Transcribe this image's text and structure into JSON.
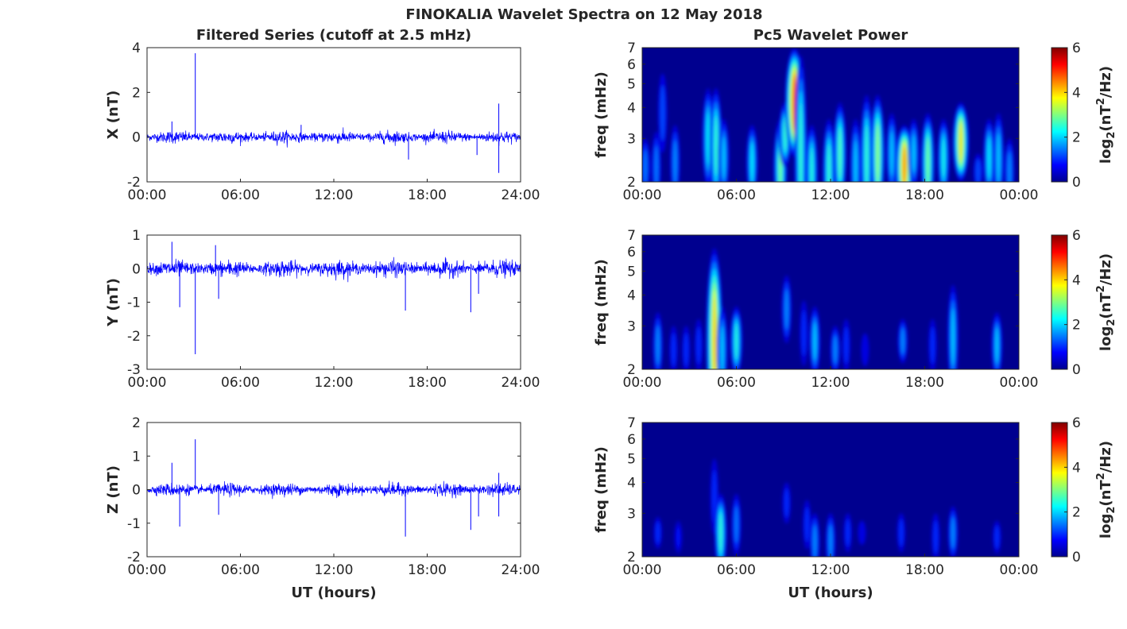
{
  "chart_data": {
    "title": "FINOKALIA Wavelet Spectra on 12 May 2018",
    "left_title": "Filtered Series (cutoff at 2.5 mHz)",
    "right_title": "Pc5 Wavelet Power",
    "xlabel": "UT (hours)",
    "time_ticks": [
      "00:00",
      "06:00",
      "12:00",
      "18:00",
      "24:00"
    ],
    "wavelet_time_ticks": [
      "00:00",
      "06:00",
      "12:00",
      "18:00",
      "00:00"
    ],
    "freq_label": "freq (mHz)",
    "freq_ticks": [
      2,
      3,
      4,
      5,
      6,
      7
    ],
    "freq_range": [
      2,
      7
    ],
    "colorbar": {
      "label": "log2(nT²/Hz)",
      "label_base": "log",
      "label_sub": "2",
      "label_rest_a": "(nT",
      "label_sup": "2",
      "label_rest_b": "/Hz)",
      "ticks": [
        0,
        2,
        4,
        6
      ],
      "range": [
        0,
        6
      ],
      "colormap": "jet"
    },
    "series": [
      {
        "name": "X",
        "ylabel": "X (nT)",
        "ylim": [
          -2,
          4
        ],
        "yticks": [
          -2,
          0,
          2,
          4
        ],
        "color": "#0000ff",
        "noise_std": 0.1,
        "spikes": [
          [
            1.6,
            0.7
          ],
          [
            3.1,
            3.75
          ],
          [
            9.9,
            0.55
          ],
          [
            16.8,
            -1.0
          ],
          [
            21.2,
            -0.8
          ],
          [
            22.6,
            1.5
          ],
          [
            22.6,
            -1.6
          ]
        ],
        "wavelet": [
          [
            0.2,
            2.3,
            1.5,
            3.0
          ],
          [
            0.9,
            2.3,
            1.5,
            3.2
          ],
          [
            1.3,
            3.8,
            1.2,
            5.5
          ],
          [
            2.1,
            2.4,
            1.6,
            3.4
          ],
          [
            4.2,
            3.0,
            2.3,
            4.8
          ],
          [
            4.7,
            2.8,
            2.6,
            4.8
          ],
          [
            5.2,
            2.5,
            2.0,
            3.6
          ],
          [
            7.0,
            2.4,
            2.2,
            3.4
          ],
          [
            8.8,
            2.3,
            3.0,
            3.6
          ],
          [
            9.1,
            3.1,
            2.6,
            4.2
          ],
          [
            9.7,
            4.2,
            5.0,
            7.0
          ],
          [
            10.1,
            2.6,
            2.6,
            6.5
          ],
          [
            10.8,
            2.2,
            2.5,
            3.4
          ],
          [
            11.9,
            2.2,
            2.6,
            3.6
          ],
          [
            12.6,
            2.6,
            2.8,
            4.2
          ],
          [
            13.6,
            2.3,
            2.0,
            3.6
          ],
          [
            14.3,
            2.5,
            2.6,
            4.5
          ],
          [
            15.0,
            2.6,
            3.2,
            4.5
          ],
          [
            15.9,
            2.6,
            2.0,
            3.8
          ],
          [
            16.7,
            2.3,
            4.6,
            3.4
          ],
          [
            17.3,
            2.6,
            2.0,
            3.6
          ],
          [
            18.2,
            2.4,
            3.0,
            3.8
          ],
          [
            19.2,
            2.5,
            2.4,
            3.6
          ],
          [
            20.3,
            2.9,
            4.0,
            4.2
          ],
          [
            21.4,
            2.2,
            1.2,
            2.6
          ],
          [
            22.1,
            2.5,
            2.2,
            3.6
          ],
          [
            22.7,
            2.5,
            2.0,
            3.8
          ],
          [
            23.4,
            2.2,
            1.6,
            3.0
          ]
        ]
      },
      {
        "name": "Y",
        "ylabel": "Y (nT)",
        "ylim": [
          -3,
          1
        ],
        "yticks": [
          -3,
          -2,
          -1,
          0,
          1
        ],
        "color": "#0000ff",
        "noise_std": 0.09,
        "spikes": [
          [
            1.6,
            0.8
          ],
          [
            2.1,
            -1.15
          ],
          [
            3.1,
            -2.55
          ],
          [
            4.6,
            -0.9
          ],
          [
            4.4,
            0.7
          ],
          [
            16.6,
            -1.25
          ],
          [
            20.8,
            -1.3
          ],
          [
            21.3,
            -0.75
          ]
        ],
        "wavelet": [
          [
            1.0,
            2.5,
            1.6,
            3.4
          ],
          [
            2.0,
            2.4,
            1.0,
            3.0
          ],
          [
            2.8,
            2.4,
            1.0,
            3.0
          ],
          [
            3.6,
            2.5,
            1.0,
            3.2
          ],
          [
            4.6,
            2.6,
            4.2,
            6.2
          ],
          [
            5.1,
            2.4,
            2.0,
            3.6
          ],
          [
            6.0,
            2.6,
            2.5,
            3.6
          ],
          [
            9.2,
            3.5,
            1.6,
            4.8
          ],
          [
            10.3,
            2.8,
            1.0,
            3.8
          ],
          [
            11.0,
            2.6,
            2.0,
            3.6
          ],
          [
            12.3,
            2.4,
            1.6,
            3.0
          ],
          [
            13.0,
            2.5,
            1.0,
            3.2
          ],
          [
            14.2,
            2.4,
            0.6,
            2.8
          ],
          [
            16.6,
            2.6,
            1.6,
            3.2
          ],
          [
            18.5,
            2.5,
            1.0,
            3.2
          ],
          [
            19.8,
            2.7,
            2.0,
            4.4
          ],
          [
            22.6,
            2.5,
            2.0,
            3.4
          ]
        ]
      },
      {
        "name": "Z",
        "ylabel": "Z (nT)",
        "ylim": [
          -2,
          2
        ],
        "yticks": [
          -2,
          -1,
          0,
          1,
          2
        ],
        "color": "#0000ff",
        "noise_std": 0.07,
        "spikes": [
          [
            1.6,
            0.8
          ],
          [
            2.1,
            -1.1
          ],
          [
            3.1,
            1.5
          ],
          [
            4.6,
            -0.75
          ],
          [
            16.6,
            -1.4
          ],
          [
            20.8,
            -1.2
          ],
          [
            21.3,
            -0.8
          ],
          [
            22.6,
            0.5
          ],
          [
            22.6,
            -0.8
          ]
        ],
        "wavelet": [
          [
            1.0,
            2.5,
            1.0,
            2.9
          ],
          [
            2.3,
            2.4,
            0.8,
            2.8
          ],
          [
            4.6,
            3.5,
            1.0,
            5.0
          ],
          [
            5.0,
            2.5,
            2.6,
            3.6
          ],
          [
            6.0,
            2.7,
            1.5,
            3.6
          ],
          [
            9.2,
            3.3,
            1.0,
            4.0
          ],
          [
            10.5,
            2.7,
            1.0,
            3.4
          ],
          [
            11.0,
            2.3,
            1.6,
            3.0
          ],
          [
            12.0,
            2.3,
            1.6,
            3.0
          ],
          [
            13.1,
            2.5,
            1.0,
            3.0
          ],
          [
            14.0,
            2.5,
            0.6,
            2.8
          ],
          [
            16.5,
            2.5,
            1.0,
            3.0
          ],
          [
            18.7,
            2.4,
            1.0,
            3.0
          ],
          [
            19.8,
            2.5,
            1.6,
            3.2
          ],
          [
            22.6,
            2.4,
            1.0,
            2.8
          ]
        ]
      }
    ]
  }
}
